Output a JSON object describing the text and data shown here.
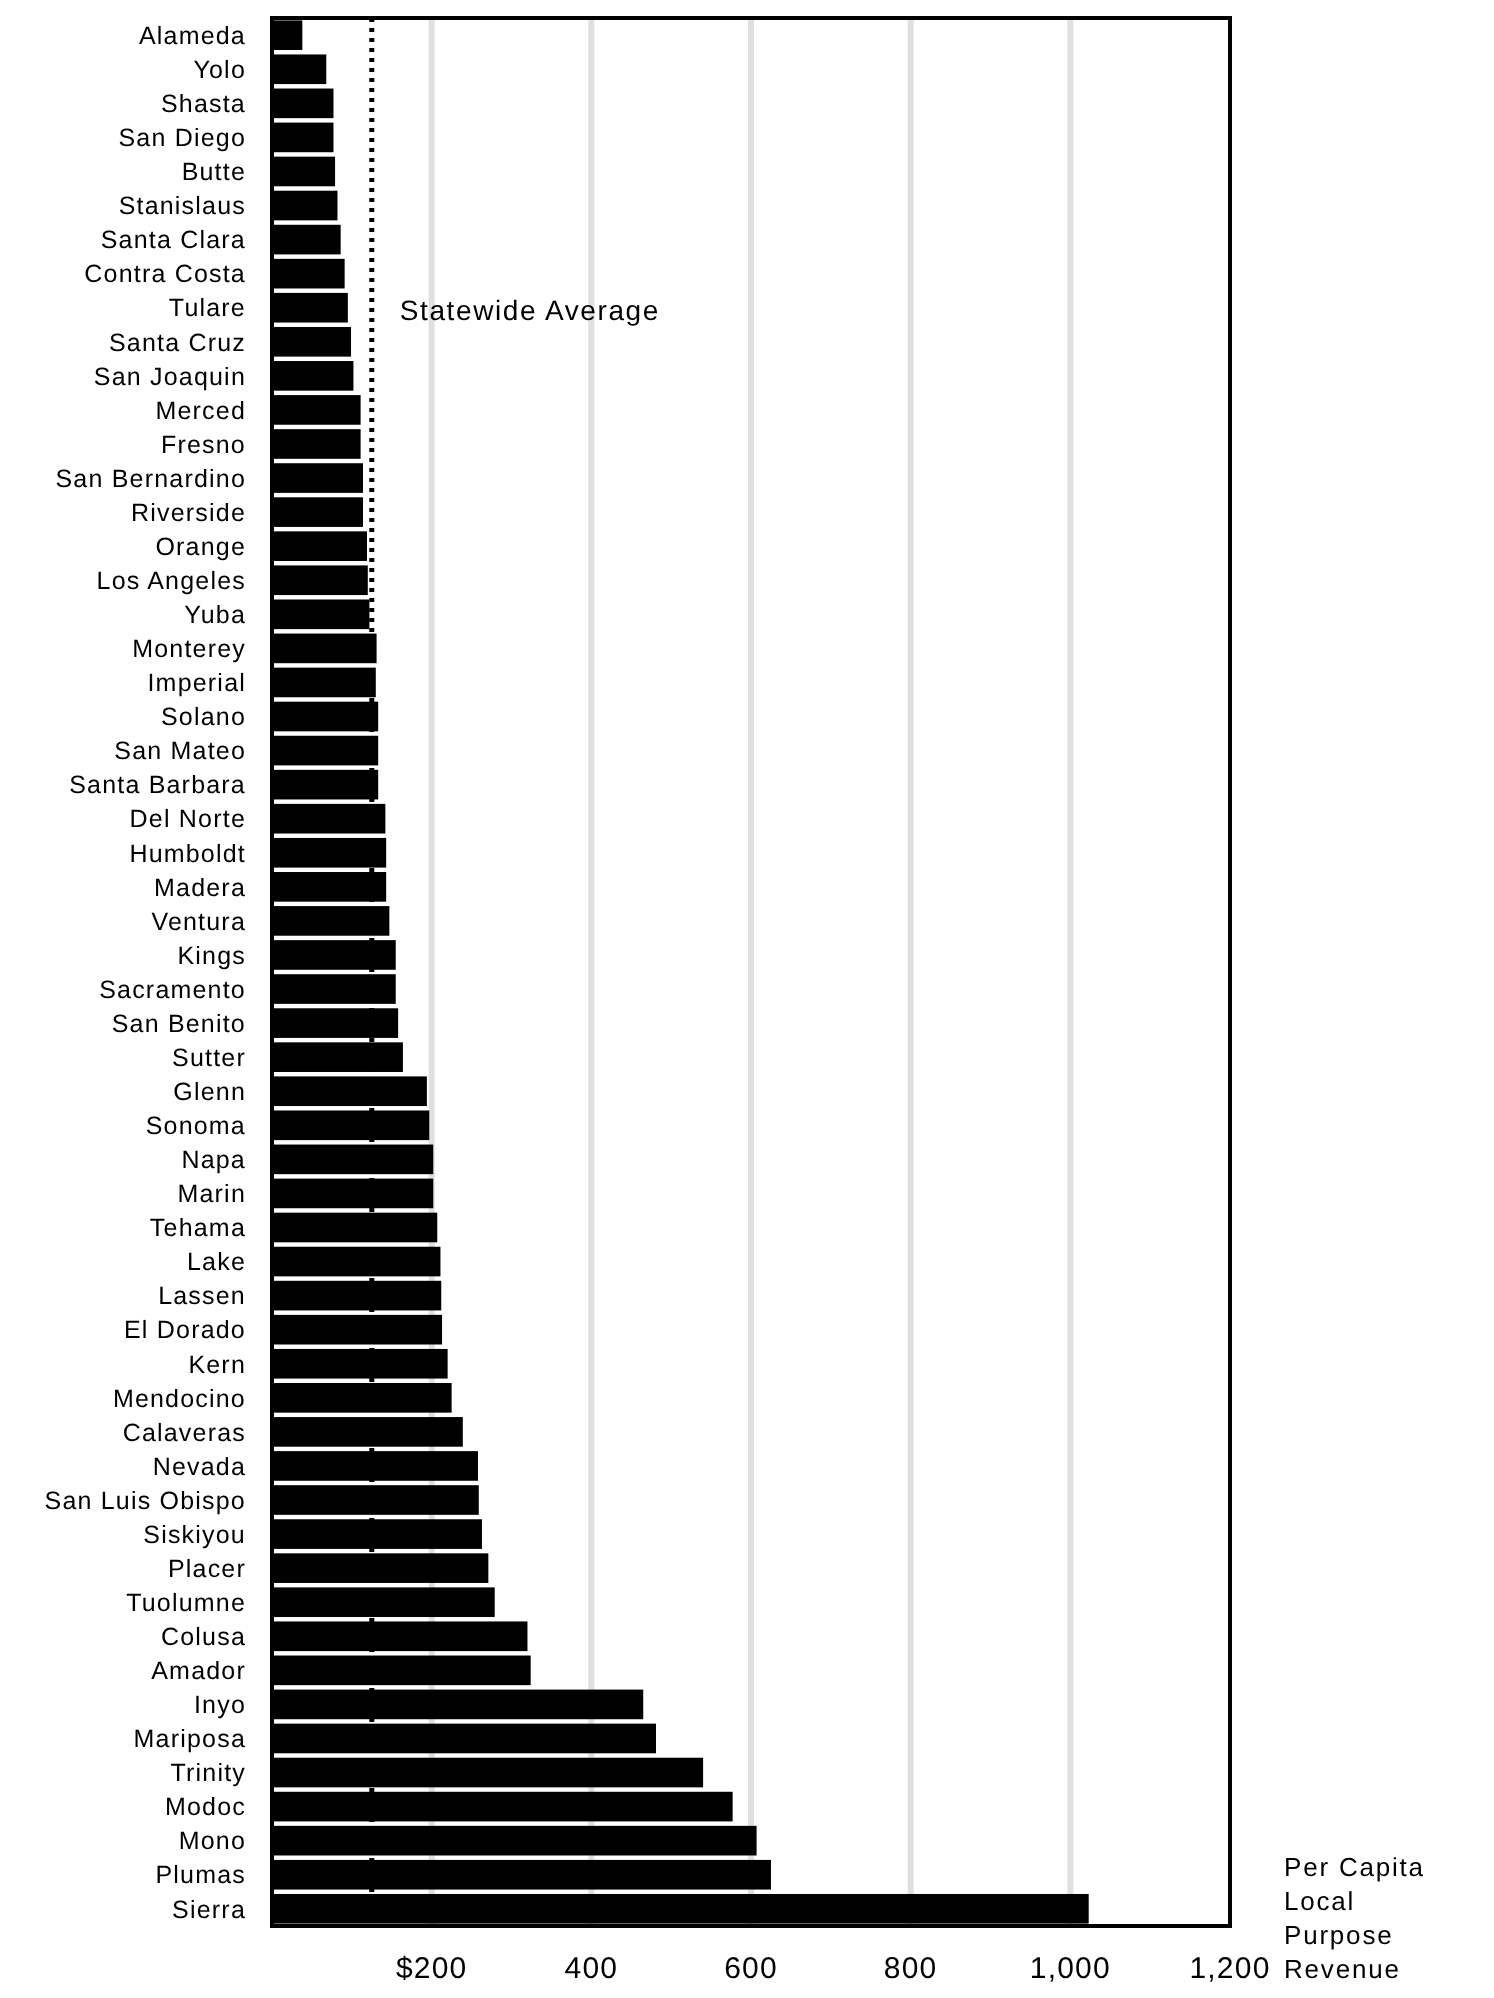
{
  "chart_data": {
    "type": "bar",
    "orientation": "horizontal",
    "xlabel": "Per Capita Local Purpose Revenue",
    "categories": [
      "Alameda",
      "Yolo",
      "Shasta",
      "San Diego",
      "Butte",
      "Stanislaus",
      "Santa Clara",
      "Contra Costa",
      "Tulare",
      "Santa Cruz",
      "San Joaquin",
      "Merced",
      "Fresno",
      "San Bernardino",
      "Riverside",
      "Orange",
      "Los Angeles",
      "Yuba",
      "Monterey",
      "Imperial",
      "Solano",
      "San Mateo",
      "Santa Barbara",
      "Del Norte",
      "Humboldt",
      "Madera",
      "Ventura",
      "Kings",
      "Sacramento",
      "San Benito",
      "Sutter",
      "Glenn",
      "Sonoma",
      "Napa",
      "Marin",
      "Tehama",
      "Lake",
      "Lassen",
      "El Dorado",
      "Kern",
      "Mendocino",
      "Calaveras",
      "Nevada",
      "San Luis Obispo",
      "Siskiyou",
      "Placer",
      "Tuolumne",
      "Colusa",
      "Amador",
      "Inyo",
      "Mariposa",
      "Trinity",
      "Modoc",
      "Mono",
      "Plumas",
      "Sierra"
    ],
    "values": [
      38,
      68,
      77,
      77,
      79,
      82,
      86,
      91,
      95,
      99,
      102,
      111,
      111,
      114,
      114,
      119,
      120,
      122,
      131,
      130,
      133,
      133,
      133,
      142,
      143,
      143,
      147,
      155,
      155,
      158,
      164,
      194,
      197,
      202,
      202,
      207,
      211,
      212,
      213,
      220,
      225,
      239,
      258,
      259,
      263,
      271,
      279,
      320,
      324,
      465,
      481,
      540,
      577,
      607,
      625,
      1023
    ],
    "color": "#000000",
    "xlim": [
      0,
      1200
    ],
    "xticks": [
      {
        "value": 200,
        "label": "$200"
      },
      400,
      600,
      800,
      {
        "value": 1000,
        "label": "1,000"
      },
      {
        "value": 1200,
        "label": "1,200"
      }
    ],
    "grid": "x",
    "ref_lines": [
      {
        "axis": "x",
        "value": 125,
        "label": "Statewide Average",
        "color": "#000000",
        "line_style": "dotted"
      }
    ]
  }
}
